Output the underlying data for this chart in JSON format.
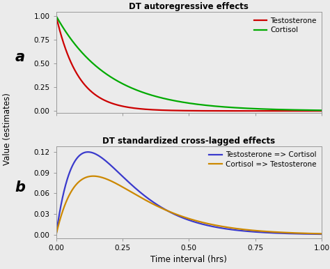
{
  "title_a": "DT autoregressive effects",
  "title_b": "DT standardized cross-lagged effects",
  "xlabel": "Time interval (hrs)",
  "ylabel": "Value (estimates)",
  "label_a": "a",
  "label_b": "b",
  "legend_a": [
    "Testosterone",
    "Cortisol"
  ],
  "legend_b": [
    "Testosterone => Cortisol",
    "Cortisol => Testosterone"
  ],
  "color_testosterone": "#cc0000",
  "color_cortisol": "#00aa00",
  "color_testo_to_cort": "#3a3acc",
  "color_cort_to_testo": "#cc8800",
  "xlim": [
    0.0,
    1.0
  ],
  "ylim_a": [
    -0.02,
    1.04
  ],
  "ylim_b": [
    -0.005,
    0.128
  ],
  "yticks_a": [
    0.0,
    0.25,
    0.5,
    0.75,
    1.0
  ],
  "yticks_b": [
    0.0,
    0.03,
    0.06,
    0.09,
    0.12
  ],
  "xticks": [
    0.0,
    0.25,
    0.5,
    0.75,
    1.0
  ],
  "decay_testosterone": 12.0,
  "decay_cortisol": 5.0,
  "cross_lag_peak_tc": 0.12,
  "cross_lag_scale_tc": 0.12,
  "cross_lag_peak_ct": 0.14,
  "cross_lag_scale_ct": 0.085,
  "bg_color": "#ebebeb"
}
